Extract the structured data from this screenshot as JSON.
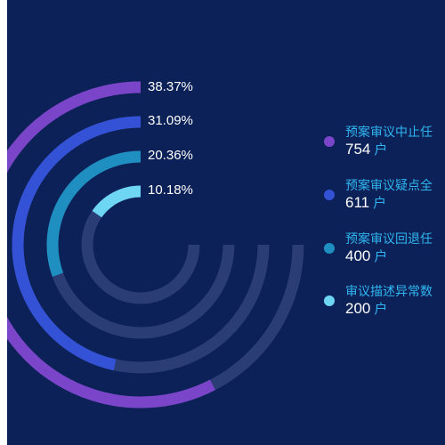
{
  "chart_data": {
    "type": "radial-bar",
    "series": [
      {
        "name": "预案审议中止任",
        "value": 754,
        "unit": "户",
        "percent_label": "38.37%",
        "percent": 38.37,
        "color": "#7b45c9"
      },
      {
        "name": "预案审议疑点全",
        "value": 611,
        "unit": "户",
        "percent_label": "31.09%",
        "percent": 31.09,
        "color": "#3452d6"
      },
      {
        "name": "预案审议回退任",
        "value": 400,
        "unit": "户",
        "percent_label": "20.36%",
        "percent": 20.36,
        "color": "#1e8fc0"
      },
      {
        "name": "审议描述异常数",
        "value": 200,
        "unit": "户",
        "percent_label": "10.18%",
        "percent": 10.18,
        "color": "#6ed6f2"
      }
    ],
    "track_color": "#2a3d74",
    "background": "#0c2157",
    "legend_position": "right"
  }
}
